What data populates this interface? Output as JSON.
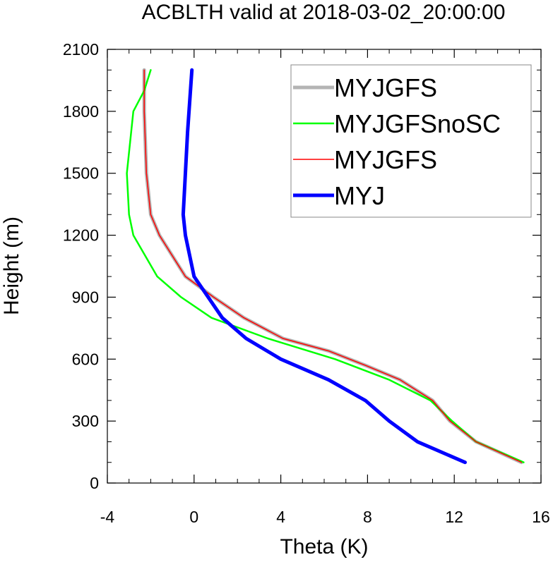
{
  "chart_data": {
    "type": "line",
    "title": "ACBLTH valid at 2018-03-02_20:00:00",
    "xlabel": "Theta (K)",
    "ylabel": "Height (m)",
    "xlim": [
      -4,
      16
    ],
    "ylim": [
      0,
      2100
    ],
    "x_ticks": [
      -4,
      0,
      4,
      8,
      12,
      16
    ],
    "y_ticks": [
      0,
      300,
      600,
      900,
      1200,
      1500,
      1800,
      2100
    ],
    "grid": false,
    "legend_position": "top-right",
    "series": [
      {
        "name": "MYJGFS",
        "color": "#b4b4b4",
        "points": [
          [
            -2.3,
            2000
          ],
          [
            -2.3,
            1800
          ],
          [
            -2.2,
            1500
          ],
          [
            -2.0,
            1300
          ],
          [
            -1.6,
            1200
          ],
          [
            -0.4,
            1000
          ],
          [
            0.9,
            900
          ],
          [
            2.3,
            800
          ],
          [
            4.1,
            700
          ],
          [
            6.2,
            640
          ],
          [
            7.9,
            570
          ],
          [
            9.5,
            500
          ],
          [
            11.0,
            400
          ],
          [
            11.8,
            300
          ],
          [
            13.0,
            200
          ],
          [
            15.1,
            100
          ]
        ]
      },
      {
        "name": "MYJGFSnoSC",
        "color": "#00ff00",
        "points": [
          [
            -2.0,
            2000
          ],
          [
            -2.3,
            1900
          ],
          [
            -2.8,
            1800
          ],
          [
            -3.1,
            1500
          ],
          [
            -3.0,
            1300
          ],
          [
            -2.8,
            1200
          ],
          [
            -1.7,
            1000
          ],
          [
            -0.6,
            900
          ],
          [
            0.8,
            800
          ],
          [
            3.4,
            700
          ],
          [
            6.5,
            600
          ],
          [
            9.0,
            500
          ],
          [
            10.9,
            400
          ],
          [
            11.9,
            300
          ],
          [
            13.0,
            200
          ],
          [
            15.2,
            100
          ]
        ]
      },
      {
        "name": "MYJGFS",
        "color": "#ff0000",
        "points": [
          [
            -2.3,
            2000
          ],
          [
            -2.3,
            1800
          ],
          [
            -2.2,
            1500
          ],
          [
            -2.0,
            1300
          ],
          [
            -1.6,
            1200
          ],
          [
            -0.4,
            1000
          ],
          [
            0.9,
            900
          ],
          [
            2.3,
            800
          ],
          [
            4.1,
            700
          ],
          [
            6.2,
            640
          ],
          [
            7.9,
            570
          ],
          [
            9.5,
            500
          ],
          [
            11.0,
            400
          ],
          [
            11.8,
            300
          ],
          [
            13.0,
            200
          ],
          [
            15.1,
            100
          ]
        ]
      },
      {
        "name": "MYJ",
        "color": "#0000ff",
        "points": [
          [
            -0.1,
            2000
          ],
          [
            -0.3,
            1700
          ],
          [
            -0.5,
            1300
          ],
          [
            -0.4,
            1200
          ],
          [
            0.0,
            1000
          ],
          [
            1.3,
            800
          ],
          [
            2.4,
            700
          ],
          [
            4.0,
            600
          ],
          [
            6.2,
            500
          ],
          [
            7.9,
            400
          ],
          [
            9.0,
            300
          ],
          [
            10.3,
            200
          ],
          [
            12.5,
            100
          ]
        ]
      }
    ]
  }
}
